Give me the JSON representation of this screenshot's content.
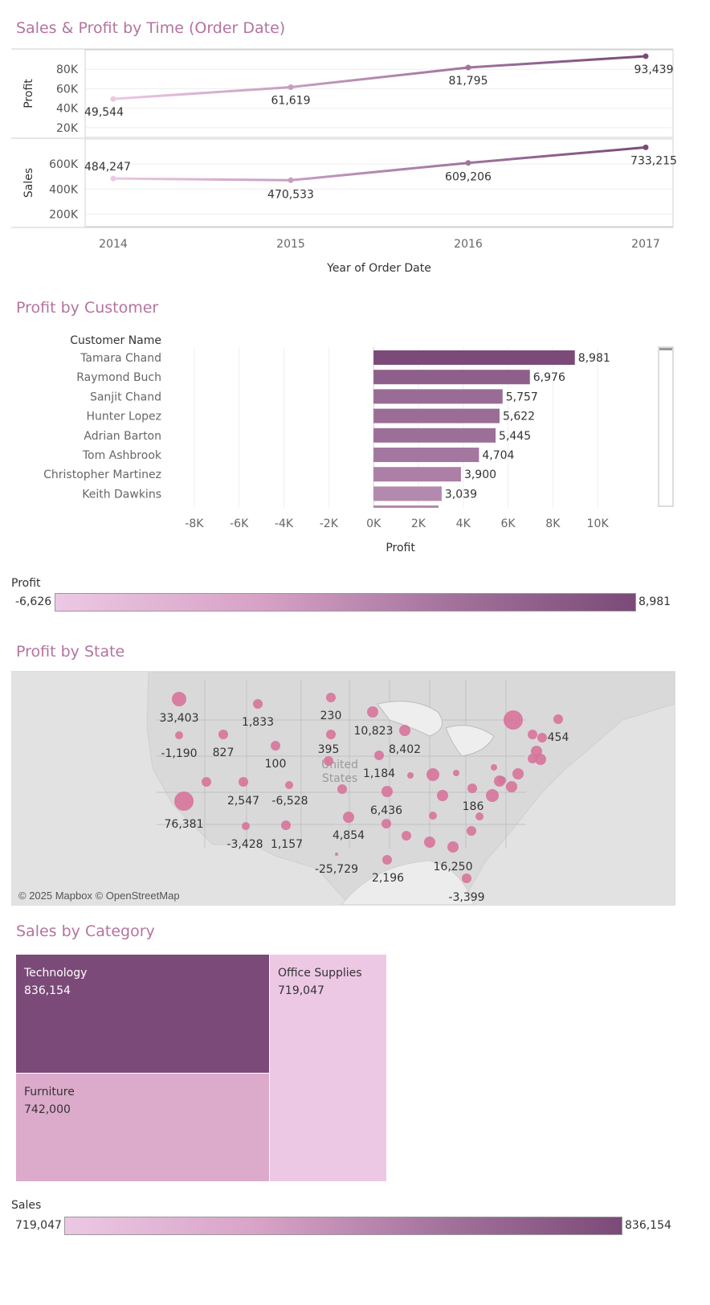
{
  "sections": {
    "time_title": "Sales & Profit by Time (Order Date)",
    "customer_title": "Profit by Customer",
    "state_title": "Profit by State",
    "category_title": "Sales by Category"
  },
  "colors": {
    "title": "#b5739f",
    "dark_purple": "#7b4a78",
    "light_pink": "#ecc8e4",
    "map_dot": "#d6739a",
    "land": "#e3e3e3",
    "border": "#bdbdbd"
  },
  "chart_data": [
    {
      "type": "line",
      "xlabel": "Year of Order Date",
      "x": [
        "2014",
        "2015",
        "2016",
        "2017"
      ],
      "panels": [
        {
          "name": "Profit",
          "ylabel": "Profit",
          "ylim": [
            10000,
            100000
          ],
          "ticks": [
            "80K",
            "60K",
            "40K",
            "20K"
          ],
          "tick_values": [
            80000,
            60000,
            40000,
            20000
          ],
          "values": [
            49544,
            61619,
            81795,
            93439
          ],
          "labels": [
            "49,544",
            "61,619",
            "81,795",
            "93,439"
          ]
        },
        {
          "name": "Sales",
          "ylabel": "Sales",
          "ylim": [
            100000,
            800000
          ],
          "ticks": [
            "600K",
            "400K",
            "200K"
          ],
          "tick_values": [
            600000,
            400000,
            200000
          ],
          "values": [
            484247,
            470533,
            609206,
            733215
          ],
          "labels": [
            "484,247",
            "470,533",
            "609,206",
            "733,215"
          ]
        }
      ]
    },
    {
      "type": "bar",
      "orientation": "horizontal",
      "row_header": "Customer Name",
      "xlabel": "Profit",
      "xlim": [
        -9000,
        11500
      ],
      "x_ticks": [
        "-8K",
        "-6K",
        "-4K",
        "-2K",
        "0K",
        "2K",
        "4K",
        "6K",
        "8K",
        "10K"
      ],
      "x_tick_values": [
        -8000,
        -6000,
        -4000,
        -2000,
        0,
        2000,
        4000,
        6000,
        8000,
        10000
      ],
      "categories": [
        "Tamara Chand",
        "Raymond Buch",
        "Sanjit Chand",
        "Hunter Lopez",
        "Adrian Barton",
        "Tom Ashbrook",
        "Christopher Martinez",
        "Keith Dawkins"
      ],
      "values": [
        8981,
        6976,
        5757,
        5622,
        5445,
        4704,
        3900,
        3039
      ],
      "labels": [
        "8,981",
        "6,976",
        "5,757",
        "5,622",
        "5,445",
        "4,704",
        "3,900",
        "3,039"
      ],
      "partial_next_value": 2900
    },
    {
      "type": "map",
      "legend": {
        "title": "Profit",
        "min": "-6,626",
        "max": "8,981"
      },
      "attribution": "© 2025 Mapbox © OpenStreetMap",
      "country_label": [
        "United",
        "States"
      ],
      "labels": [
        "33,403",
        "1,833",
        "230",
        "10,823",
        "454",
        "-1,190",
        "827",
        "395",
        "8,402",
        "100",
        "1,184",
        "2,547",
        "-6,528",
        "76,381",
        "6,436",
        "186",
        "4,854",
        "-3,428",
        "1,157",
        "16,250",
        "-25,729",
        "2,196",
        "-3,399"
      ]
    },
    {
      "type": "treemap",
      "legend": {
        "title": "Sales",
        "min": "719,047",
        "max": "836,154"
      },
      "categories": [
        "Technology",
        "Office Supplies",
        "Furniture"
      ],
      "values": [
        836154,
        719047,
        742000
      ],
      "labels": [
        "836,154",
        "719,047",
        "742,000"
      ]
    }
  ]
}
